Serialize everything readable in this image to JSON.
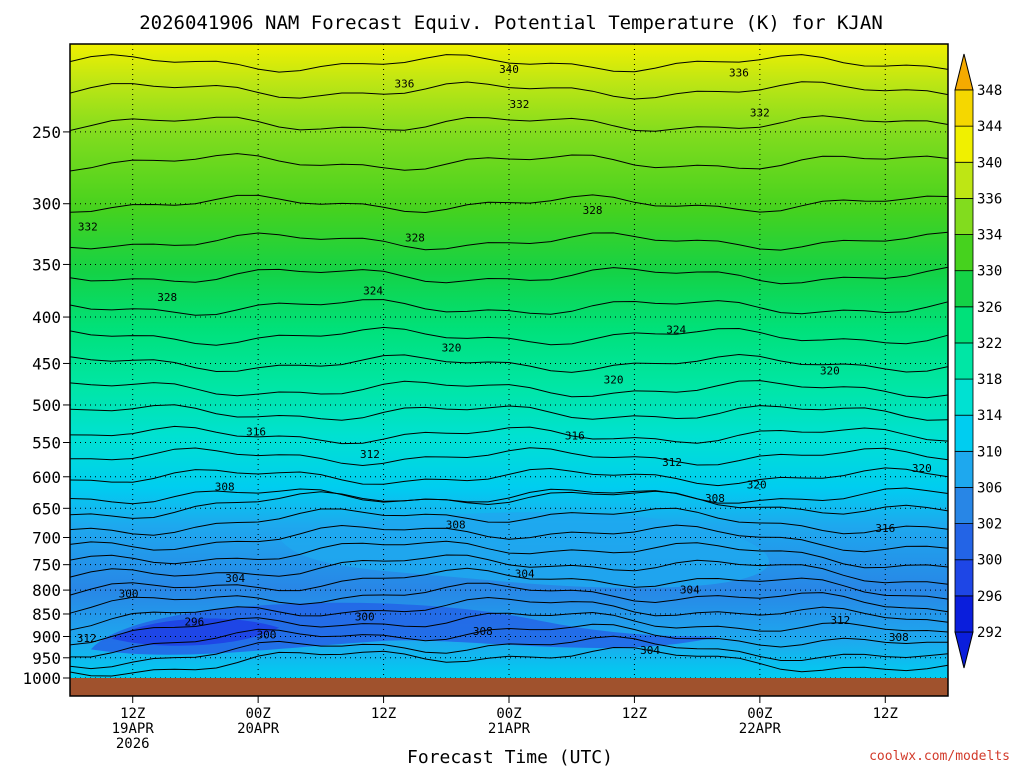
{
  "chart_data": {
    "type": "heatmap",
    "title": "2026041906 NAM Forecast Equiv. Potential Temperature (K) for KJAN",
    "xlabel": "Forecast Time (UTC)",
    "ylabel": "",
    "source_label": "coolwx.com/modelts",
    "y_axis": {
      "scale": "log-pressure",
      "range": [
        1000,
        200
      ],
      "ticks": [
        1000,
        950,
        900,
        850,
        800,
        750,
        700,
        650,
        600,
        550,
        500,
        450,
        400,
        350,
        300,
        250
      ]
    },
    "x_axis": {
      "unit": "forecast_hour",
      "range": [
        0,
        84
      ],
      "ticks": [
        {
          "hour": 6,
          "lines": [
            "12Z",
            "19APR",
            "2026"
          ]
        },
        {
          "hour": 18,
          "lines": [
            "00Z",
            "20APR"
          ]
        },
        {
          "hour": 30,
          "lines": [
            "12Z"
          ]
        },
        {
          "hour": 42,
          "lines": [
            "00Z",
            "21APR"
          ]
        },
        {
          "hour": 54,
          "lines": [
            "12Z"
          ]
        },
        {
          "hour": 66,
          "lines": [
            "00Z",
            "22APR"
          ]
        },
        {
          "hour": 78,
          "lines": [
            "12Z"
          ]
        }
      ]
    },
    "colorbar": {
      "levels": [
        292,
        296,
        300,
        302,
        306,
        310,
        314,
        318,
        322,
        326,
        330,
        334,
        336,
        340,
        344,
        348
      ],
      "colors": [
        "#0a1edc",
        "#1e46e6",
        "#2364e6",
        "#2886e6",
        "#1ea8ee",
        "#00cdf0",
        "#00e1d2",
        "#00e6a5",
        "#00e17a",
        "#14d246",
        "#46d21e",
        "#82dc1e",
        "#bee614",
        "#f0f000",
        "#f5d700",
        "#f5aa00"
      ]
    },
    "contour_labels": [
      {
        "value": "340",
        "hour": 42,
        "p": 213
      },
      {
        "value": "336",
        "hour": 32,
        "p": 221
      },
      {
        "value": "336",
        "hour": 64,
        "p": 215
      },
      {
        "value": "332",
        "hour": 43,
        "p": 233
      },
      {
        "value": "332",
        "hour": 66,
        "p": 238
      },
      {
        "value": "332",
        "hour": 1.7,
        "p": 318
      },
      {
        "value": "328",
        "hour": 50,
        "p": 305
      },
      {
        "value": "328",
        "hour": 33,
        "p": 327
      },
      {
        "value": "328",
        "hour": 9.3,
        "p": 380
      },
      {
        "value": "324",
        "hour": 29,
        "p": 374
      },
      {
        "value": "324",
        "hour": 58,
        "p": 413
      },
      {
        "value": "320",
        "hour": 36.5,
        "p": 432
      },
      {
        "value": "320",
        "hour": 52,
        "p": 469
      },
      {
        "value": "320",
        "hour": 72.7,
        "p": 458
      },
      {
        "value": "320",
        "hour": 81.5,
        "p": 587
      },
      {
        "value": "320",
        "hour": 65.7,
        "p": 612
      },
      {
        "value": "316",
        "hour": 17.8,
        "p": 535
      },
      {
        "value": "316",
        "hour": 48.3,
        "p": 540
      },
      {
        "value": "312",
        "hour": 28.7,
        "p": 566
      },
      {
        "value": "312",
        "hour": 57.6,
        "p": 578
      },
      {
        "value": "312",
        "hour": 73.7,
        "p": 863
      },
      {
        "value": "308",
        "hour": 14.8,
        "p": 615
      },
      {
        "value": "308",
        "hour": 36.9,
        "p": 677
      },
      {
        "value": "308",
        "hour": 61.7,
        "p": 633
      },
      {
        "value": "308",
        "hour": 39.5,
        "p": 887
      },
      {
        "value": "308",
        "hour": 79.3,
        "p": 901
      },
      {
        "value": "316",
        "hour": 78,
        "p": 683
      },
      {
        "value": "304",
        "hour": 15.8,
        "p": 776
      },
      {
        "value": "304",
        "hour": 43.5,
        "p": 767
      },
      {
        "value": "304",
        "hour": 59.3,
        "p": 799
      },
      {
        "value": "304",
        "hour": 55.5,
        "p": 931
      },
      {
        "value": "300",
        "hour": 5.6,
        "p": 807
      },
      {
        "value": "300",
        "hour": 28.2,
        "p": 855
      },
      {
        "value": "300",
        "hour": 18.8,
        "p": 896
      },
      {
        "value": "296",
        "hour": 11.9,
        "p": 866
      },
      {
        "value": "312",
        "hour": 1.6,
        "p": 904
      }
    ]
  }
}
